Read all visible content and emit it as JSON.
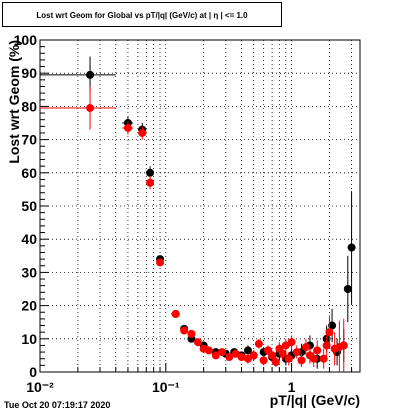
{
  "title": "Lost wrt Geom for Global vs pT/|q| (GeV/c) at | η | <= 1.0",
  "timestamp": "Tue Oct 20 07:19:17 2020",
  "chart_data": {
    "type": "scatter",
    "title": "Lost wrt Geom for Global vs pT/|q| (GeV/c) at | η | <= 1.0",
    "xlabel": "pT/|q| (GeV/c)",
    "ylabel": "Lost wrt Geom (%)",
    "x_scale": "log",
    "xlim": [
      0.01,
      3.5
    ],
    "ylim": [
      0,
      100
    ],
    "grid": true,
    "x_tick_labels": [
      "10⁻²",
      "10⁻¹",
      "1"
    ],
    "y_tick_labels": [
      "0",
      "10",
      "20",
      "30",
      "40",
      "50",
      "60",
      "70",
      "80",
      "90",
      "100"
    ],
    "series": [
      {
        "color": "#000000",
        "points": [
          {
            "x": 0.025,
            "y": 89.5,
            "xlo": 0.01,
            "xhi": 0.04,
            "err": 5.5
          },
          {
            "x": 0.05,
            "y": 75.0,
            "xlo": 0.045,
            "xhi": 0.055,
            "err": 2
          },
          {
            "x": 0.065,
            "y": 73.0,
            "xlo": 0.06,
            "xhi": 0.07,
            "err": 2
          },
          {
            "x": 0.075,
            "y": 60.0,
            "xlo": 0.072,
            "xhi": 0.078,
            "err": 2
          },
          {
            "x": 0.09,
            "y": 34.0,
            "xlo": 0.085,
            "xhi": 0.095,
            "err": 1
          },
          {
            "x": 0.12,
            "y": 17.5,
            "xlo": 0.11,
            "xhi": 0.125,
            "err": 1
          },
          {
            "x": 0.14,
            "y": 13.0,
            "xlo": 0.135,
            "xhi": 0.145,
            "err": 1
          },
          {
            "x": 0.16,
            "y": 10.0,
            "xlo": 0.155,
            "xhi": 0.165,
            "err": 1
          },
          {
            "x": 0.2,
            "y": 8.0,
            "xlo": 0.19,
            "xhi": 0.21,
            "err": 1
          },
          {
            "x": 0.25,
            "y": 6.0,
            "xlo": 0.24,
            "xhi": 0.26,
            "err": 1
          },
          {
            "x": 0.3,
            "y": 5.5,
            "xlo": 0.29,
            "xhi": 0.31,
            "err": 1
          },
          {
            "x": 0.35,
            "y": 6.0,
            "xlo": 0.34,
            "xhi": 0.36,
            "err": 1
          },
          {
            "x": 0.4,
            "y": 5.0,
            "xlo": 0.39,
            "xhi": 0.41,
            "err": 1
          },
          {
            "x": 0.45,
            "y": 6.5,
            "xlo": 0.44,
            "xhi": 0.46,
            "err": 1.5
          },
          {
            "x": 0.5,
            "y": 5.0,
            "xlo": 0.49,
            "xhi": 0.51,
            "err": 1.5
          },
          {
            "x": 0.6,
            "y": 6.0,
            "xlo": 0.59,
            "xhi": 0.61,
            "err": 1.5
          },
          {
            "x": 0.7,
            "y": 4.5,
            "xlo": 0.69,
            "xhi": 0.71,
            "err": 1.5
          },
          {
            "x": 0.8,
            "y": 5.5,
            "xlo": 0.79,
            "xhi": 0.81,
            "err": 2
          },
          {
            "x": 0.9,
            "y": 4.0,
            "xlo": 0.89,
            "xhi": 0.91,
            "err": 2
          },
          {
            "x": 1.0,
            "y": 5.0,
            "xlo": 0.98,
            "xhi": 1.02,
            "err": 2
          },
          {
            "x": 1.2,
            "y": 6.0,
            "xlo": 1.18,
            "xhi": 1.22,
            "err": 2.5
          },
          {
            "x": 1.4,
            "y": 8.0,
            "xlo": 1.38,
            "xhi": 1.42,
            "err": 3
          },
          {
            "x": 1.6,
            "y": 4.0,
            "xlo": 1.58,
            "xhi": 1.62,
            "err": 3
          },
          {
            "x": 1.9,
            "y": 10.0,
            "xlo": 1.87,
            "xhi": 1.93,
            "err": 4
          },
          {
            "x": 2.1,
            "y": 14.0,
            "xlo": 2.07,
            "xhi": 2.13,
            "err": 5
          },
          {
            "x": 2.3,
            "y": 6.0,
            "xlo": 2.27,
            "xhi": 2.33,
            "err": 4
          },
          {
            "x": 2.6,
            "y": 8.0,
            "xlo": 2.57,
            "xhi": 2.63,
            "err": 5
          },
          {
            "x": 2.8,
            "y": 25.0,
            "xlo": 2.77,
            "xhi": 2.83,
            "err": 10
          },
          {
            "x": 3.0,
            "y": 37.5,
            "xlo": 2.97,
            "xhi": 3.03,
            "err": 17
          }
        ]
      },
      {
        "color": "#ff0000",
        "points": [
          {
            "x": 0.025,
            "y": 79.5,
            "xlo": 0.01,
            "xhi": 0.04,
            "err": 6.5
          },
          {
            "x": 0.05,
            "y": 73.5,
            "xlo": 0.045,
            "xhi": 0.055,
            "err": 2
          },
          {
            "x": 0.065,
            "y": 72.0,
            "xlo": 0.06,
            "xhi": 0.07,
            "err": 2
          },
          {
            "x": 0.075,
            "y": 57.0,
            "xlo": 0.072,
            "xhi": 0.078,
            "err": 2
          },
          {
            "x": 0.09,
            "y": 33.0,
            "xlo": 0.085,
            "xhi": 0.095,
            "err": 1
          },
          {
            "x": 0.12,
            "y": 17.5,
            "xlo": 0.11,
            "xhi": 0.125,
            "err": 1
          },
          {
            "x": 0.14,
            "y": 12.5,
            "xlo": 0.135,
            "xhi": 0.145,
            "err": 1
          },
          {
            "x": 0.16,
            "y": 11.5,
            "xlo": 0.155,
            "xhi": 0.165,
            "err": 1
          },
          {
            "x": 0.18,
            "y": 9.0,
            "xlo": 0.175,
            "xhi": 0.185,
            "err": 1
          },
          {
            "x": 0.2,
            "y": 7.0,
            "xlo": 0.19,
            "xhi": 0.21,
            "err": 1
          },
          {
            "x": 0.22,
            "y": 6.5,
            "xlo": 0.215,
            "xhi": 0.225,
            "err": 1
          },
          {
            "x": 0.25,
            "y": 5.0,
            "xlo": 0.24,
            "xhi": 0.26,
            "err": 1
          },
          {
            "x": 0.28,
            "y": 6.0,
            "xlo": 0.27,
            "xhi": 0.29,
            "err": 1
          },
          {
            "x": 0.32,
            "y": 4.5,
            "xlo": 0.31,
            "xhi": 0.33,
            "err": 1
          },
          {
            "x": 0.36,
            "y": 5.5,
            "xlo": 0.35,
            "xhi": 0.37,
            "err": 1
          },
          {
            "x": 0.4,
            "y": 4.5,
            "xlo": 0.39,
            "xhi": 0.41,
            "err": 1
          },
          {
            "x": 0.45,
            "y": 4.0,
            "xlo": 0.44,
            "xhi": 0.46,
            "err": 1.5
          },
          {
            "x": 0.5,
            "y": 5.0,
            "xlo": 0.49,
            "xhi": 0.51,
            "err": 1.5
          },
          {
            "x": 0.55,
            "y": 8.5,
            "xlo": 0.54,
            "xhi": 0.56,
            "err": 1.5
          },
          {
            "x": 0.6,
            "y": 3.5,
            "xlo": 0.59,
            "xhi": 0.61,
            "err": 1.5
          },
          {
            "x": 0.65,
            "y": 6.5,
            "xlo": 0.64,
            "xhi": 0.66,
            "err": 1.5
          },
          {
            "x": 0.7,
            "y": 5.0,
            "xlo": 0.69,
            "xhi": 0.71,
            "err": 1.5
          },
          {
            "x": 0.75,
            "y": 3.0,
            "xlo": 0.74,
            "xhi": 0.76,
            "err": 1.5
          },
          {
            "x": 0.8,
            "y": 7.0,
            "xlo": 0.79,
            "xhi": 0.81,
            "err": 2
          },
          {
            "x": 0.85,
            "y": 5.5,
            "xlo": 0.84,
            "xhi": 0.86,
            "err": 2
          },
          {
            "x": 0.9,
            "y": 8.0,
            "xlo": 0.89,
            "xhi": 0.91,
            "err": 2
          },
          {
            "x": 0.95,
            "y": 4.0,
            "xlo": 0.94,
            "xhi": 0.96,
            "err": 2
          },
          {
            "x": 1.0,
            "y": 9.0,
            "xlo": 0.98,
            "xhi": 1.02,
            "err": 2
          },
          {
            "x": 1.1,
            "y": 6.0,
            "xlo": 1.08,
            "xhi": 1.12,
            "err": 2
          },
          {
            "x": 1.2,
            "y": 3.5,
            "xlo": 1.18,
            "xhi": 1.22,
            "err": 2
          },
          {
            "x": 1.3,
            "y": 7.5,
            "xlo": 1.28,
            "xhi": 1.32,
            "err": 2.5
          },
          {
            "x": 1.4,
            "y": 5.0,
            "xlo": 1.38,
            "xhi": 1.42,
            "err": 2.5
          },
          {
            "x": 1.5,
            "y": 4.0,
            "xlo": 1.48,
            "xhi": 1.52,
            "err": 2.5
          },
          {
            "x": 1.6,
            "y": 6.5,
            "xlo": 1.58,
            "xhi": 1.62,
            "err": 3
          },
          {
            "x": 1.8,
            "y": 4.0,
            "xlo": 1.78,
            "xhi": 1.82,
            "err": 3
          },
          {
            "x": 1.9,
            "y": 8.0,
            "xlo": 1.88,
            "xhi": 1.92,
            "err": 4
          },
          {
            "x": 2.0,
            "y": 12.0,
            "xlo": 1.98,
            "xhi": 2.02,
            "err": 5
          },
          {
            "x": 2.2,
            "y": 7.0,
            "xlo": 2.18,
            "xhi": 2.22,
            "err": 5
          },
          {
            "x": 2.4,
            "y": 7.5,
            "xlo": 2.38,
            "xhi": 2.42,
            "err": 8
          },
          {
            "x": 2.6,
            "y": 8.0,
            "xlo": 2.58,
            "xhi": 2.62,
            "err": 8
          }
        ]
      }
    ]
  }
}
